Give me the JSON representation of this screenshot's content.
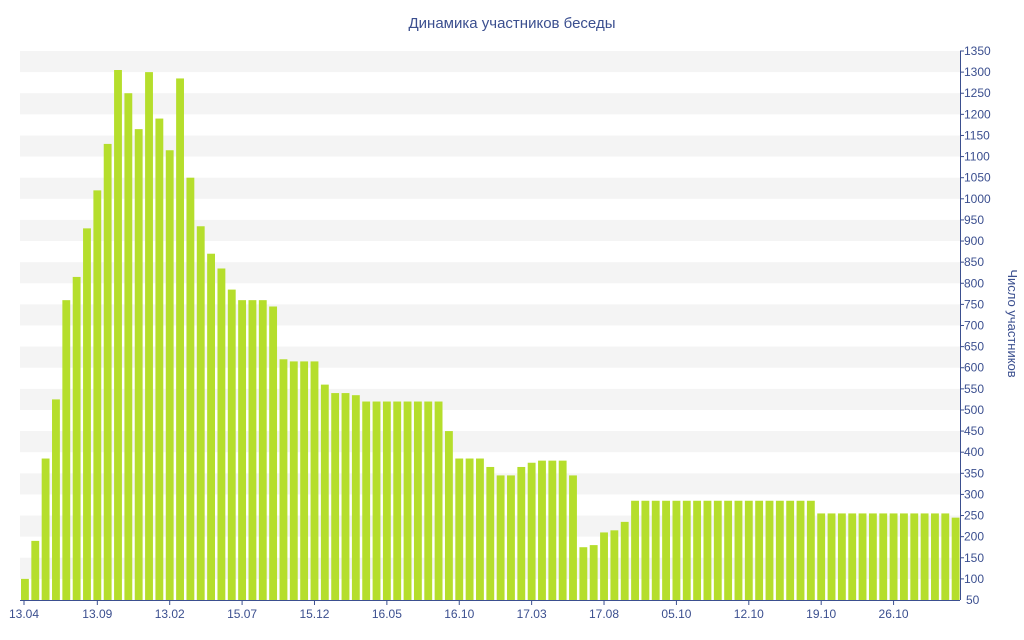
{
  "chart_data": {
    "type": "bar",
    "title": "Динамика участников беседы",
    "ylabel": "Число участников",
    "xlabel": "",
    "ylim": [
      50,
      1350
    ],
    "y_ticks": [
      100,
      150,
      200,
      250,
      300,
      350,
      400,
      450,
      500,
      550,
      600,
      650,
      700,
      750,
      800,
      850,
      900,
      950,
      1000,
      1050,
      1100,
      1150,
      1200,
      1250,
      1300,
      1350
    ],
    "y_tick_labels": [
      "100",
      "150",
      "200",
      "250",
      "300",
      "350",
      "400",
      "450",
      "500",
      "550",
      "600",
      "650",
      "700",
      "750",
      "800",
      "850",
      "900",
      "950",
      "1000",
      "1050",
      "1100",
      "1150",
      "1200",
      "1250",
      "1300",
      "1350"
    ],
    "y_min_label": "50",
    "x_tick_labels": [
      {
        "label": "13.04",
        "index": 0
      },
      {
        "label": "13.09",
        "index": 7
      },
      {
        "label": "13.02",
        "index": 14
      },
      {
        "label": "15.07",
        "index": 21
      },
      {
        "label": "15.12",
        "index": 28
      },
      {
        "label": "16.05",
        "index": 35
      },
      {
        "label": "16.10",
        "index": 42
      },
      {
        "label": "17.03",
        "index": 49
      },
      {
        "label": "17.08",
        "index": 56
      },
      {
        "label": "05.10",
        "index": 63
      },
      {
        "label": "12.10",
        "index": 70
      },
      {
        "label": "19.10",
        "index": 77
      },
      {
        "label": "26.10",
        "index": 84
      }
    ],
    "grid": "alternating horizontal bands",
    "y_axis_position": "right",
    "values": [
      100,
      190,
      385,
      525,
      760,
      815,
      930,
      1020,
      1130,
      1305,
      1250,
      1165,
      1300,
      1190,
      1115,
      1285,
      1050,
      935,
      870,
      835,
      785,
      760,
      760,
      760,
      745,
      620,
      615,
      615,
      615,
      560,
      540,
      540,
      535,
      520,
      520,
      520,
      520,
      520,
      520,
      520,
      520,
      450,
      385,
      385,
      385,
      365,
      345,
      345,
      365,
      375,
      380,
      380,
      380,
      345,
      175,
      180,
      210,
      215,
      235,
      285,
      285,
      285,
      285,
      285,
      285,
      285,
      285,
      285,
      285,
      285,
      285,
      285,
      285,
      285,
      285,
      285,
      285,
      255,
      255,
      255,
      255,
      255,
      255,
      255,
      255,
      255,
      255,
      255,
      255,
      255,
      245
    ],
    "colors": {
      "bar": "#b5de2c",
      "band": "#f4f4f4",
      "text": "#3b4f8f"
    }
  }
}
